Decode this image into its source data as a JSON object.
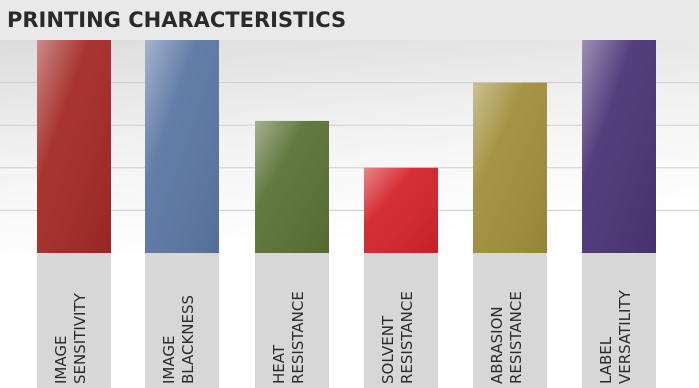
{
  "chart_data": {
    "type": "bar",
    "title": "PRINTING CHARACTERISTICS",
    "xlabel": "",
    "ylabel": "",
    "ylim": [
      0,
      5
    ],
    "grid": true,
    "categories": [
      [
        "IMAGE",
        "SENSITIVITY"
      ],
      [
        "IMAGE",
        "BLACKNESS"
      ],
      [
        "HEAT",
        "RESISTANCE"
      ],
      [
        "SOLVENT",
        "RESISTANCE"
      ],
      [
        "ABRASION",
        "RESISTANCE"
      ],
      [
        "LABEL",
        "VERSATILITY"
      ]
    ],
    "values": [
      5,
      5,
      3.1,
      2,
      4,
      5
    ],
    "colors": [
      "#a32a26",
      "#5b77a3",
      "#5a7236",
      "#d3242b",
      "#a18f3c",
      "#4b3577"
    ]
  }
}
